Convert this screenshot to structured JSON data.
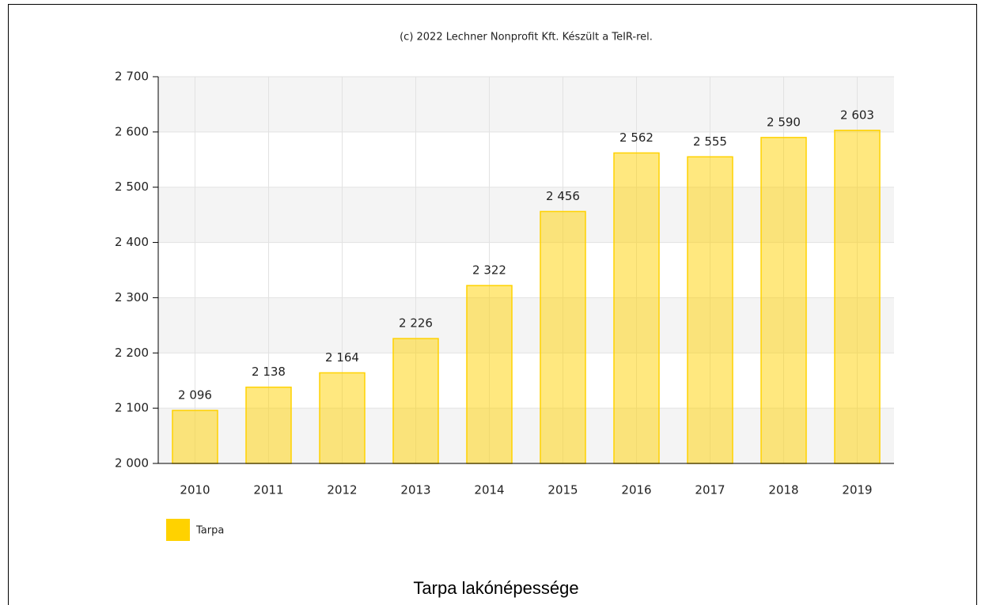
{
  "chart_data": {
    "type": "bar",
    "subtitle": "(c) 2022 Lechner Nonprofit Kft. Készült a TeIR-rel.",
    "title": "Tarpa lakónépessége",
    "categories": [
      "2010",
      "2011",
      "2012",
      "2013",
      "2014",
      "2015",
      "2016",
      "2017",
      "2018",
      "2019"
    ],
    "series": [
      {
        "name": "Tarpa",
        "color": "#ffd200",
        "values": [
          2096,
          2138,
          2164,
          2226,
          2322,
          2456,
          2562,
          2555,
          2590,
          2603
        ],
        "value_labels": [
          "2 096",
          "2 138",
          "2 164",
          "2 226",
          "2 322",
          "2 456",
          "2 562",
          "2 555",
          "2 590",
          "2 603"
        ]
      }
    ],
    "ylim": [
      2000,
      2700
    ],
    "yticks": [
      {
        "value": 2000,
        "label": "2 000"
      },
      {
        "value": 2100,
        "label": "2 100"
      },
      {
        "value": 2200,
        "label": "2 200"
      },
      {
        "value": 2300,
        "label": "2 300"
      },
      {
        "value": 2400,
        "label": "2 400"
      },
      {
        "value": 2500,
        "label": "2 500"
      },
      {
        "value": 2600,
        "label": "2 600"
      },
      {
        "value": 2700,
        "label": "2 700"
      }
    ],
    "grid": true,
    "legend": "bottom-left"
  }
}
